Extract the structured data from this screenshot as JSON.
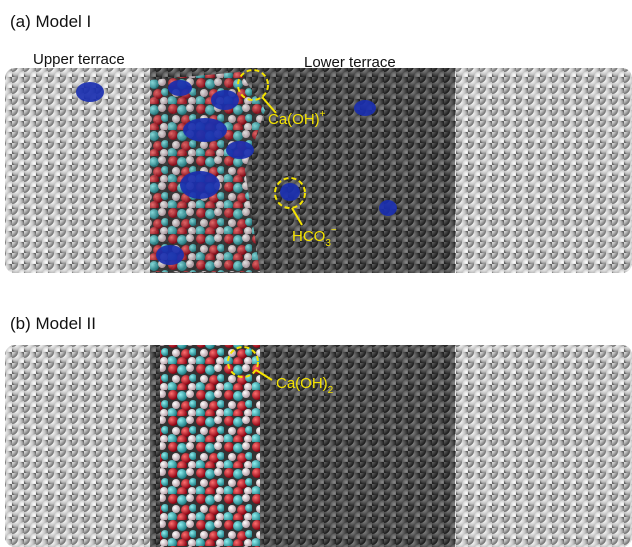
{
  "panel_a": {
    "title": "(a) Model I",
    "labels": [
      "Upper terrace",
      "Lower terrace"
    ],
    "species": [
      {
        "base": "Ca(OH)",
        "sub": null,
        "sup": "+"
      },
      {
        "base": "HCO",
        "sub": "3",
        "sup": "−"
      }
    ]
  },
  "panel_b": {
    "title": "(b) Model II",
    "species": [
      {
        "base": "Ca(OH)",
        "sub": "2",
        "sup": null
      }
    ]
  }
}
